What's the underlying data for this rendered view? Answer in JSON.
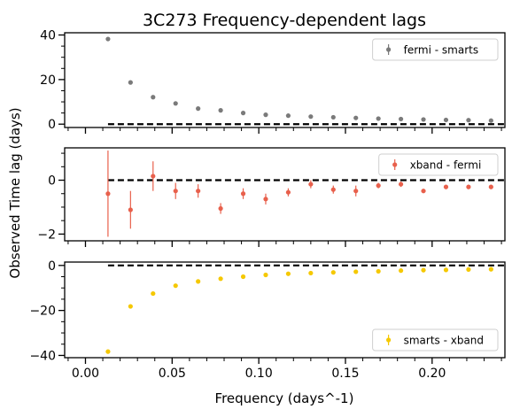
{
  "chart_data": {
    "type": "scatter",
    "title": "3C273    Frequency-dependent lags",
    "xlabel": "Frequency (days^-1)",
    "ylabel": "Observed Time lag (days)",
    "xlim": [
      -0.012,
      0.242
    ],
    "xticks": [
      "0.00",
      "0.05",
      "0.10",
      "0.15",
      "0.20"
    ],
    "xtick_values": [
      0.0,
      0.05,
      0.1,
      0.15,
      0.2
    ],
    "x": [
      0.013,
      0.026,
      0.039,
      0.052,
      0.065,
      0.078,
      0.091,
      0.104,
      0.117,
      0.13,
      0.143,
      0.156,
      0.169,
      0.182,
      0.195,
      0.208,
      0.221,
      0.234
    ],
    "panels": [
      {
        "legend": "fermi - smarts",
        "legend_position": "upper right",
        "color": "#7a7a7a",
        "ylim": [
          -1.5,
          41
        ],
        "yticks": [
          0,
          20,
          40
        ],
        "reference_line": {
          "y": 0,
          "style": "dashed",
          "x_from": 0.013
        },
        "values": [
          38.2,
          18.7,
          12.1,
          9.3,
          7.0,
          6.2,
          5.0,
          4.2,
          3.8,
          3.4,
          3.1,
          2.8,
          2.5,
          2.3,
          2.1,
          1.9,
          1.8,
          1.6
        ],
        "errors": [
          0.3,
          0.3,
          0.3,
          0.2,
          0.2,
          0.2,
          0.2,
          0.2,
          0.2,
          0.2,
          0.2,
          0.2,
          0.2,
          0.2,
          0.2,
          0.2,
          0.2,
          0.2
        ]
      },
      {
        "legend": "xband - fermi",
        "legend_position": "upper right",
        "color": "#e8604c",
        "ylim": [
          -2.25,
          1.2
        ],
        "yticks": [
          -2,
          0
        ],
        "reference_line": {
          "y": 0,
          "style": "dashed",
          "x_from": 0.013
        },
        "values": [
          -0.5,
          -1.1,
          0.15,
          -0.4,
          -0.4,
          -1.05,
          -0.5,
          -0.7,
          -0.45,
          -0.15,
          -0.35,
          -0.4,
          -0.2,
          -0.15,
          -0.4,
          -0.25,
          -0.25,
          -0.25
        ],
        "errors": [
          1.6,
          0.7,
          0.55,
          0.3,
          0.25,
          0.2,
          0.2,
          0.2,
          0.15,
          0.15,
          0.15,
          0.2,
          0.1,
          0.1,
          0.08,
          0.08,
          0.08,
          0.08
        ]
      },
      {
        "legend": "smarts - xband",
        "legend_position": "lower right",
        "color": "#f5c800",
        "ylim": [
          -41,
          1.5
        ],
        "yticks": [
          -40,
          -20,
          0
        ],
        "reference_line": {
          "y": 0,
          "style": "dashed",
          "x_from": 0.013
        },
        "values": [
          -38.3,
          -18.2,
          -12.5,
          -9.0,
          -7.1,
          -5.9,
          -5.0,
          -4.2,
          -3.7,
          -3.4,
          -3.1,
          -2.8,
          -2.6,
          -2.3,
          -2.1,
          -2.0,
          -1.8,
          -1.7
        ],
        "errors": [
          0.3,
          0.3,
          0.3,
          0.2,
          0.2,
          0.2,
          0.2,
          0.2,
          0.2,
          0.2,
          0.2,
          0.2,
          0.2,
          0.2,
          0.2,
          0.2,
          0.2,
          0.2
        ]
      }
    ]
  }
}
